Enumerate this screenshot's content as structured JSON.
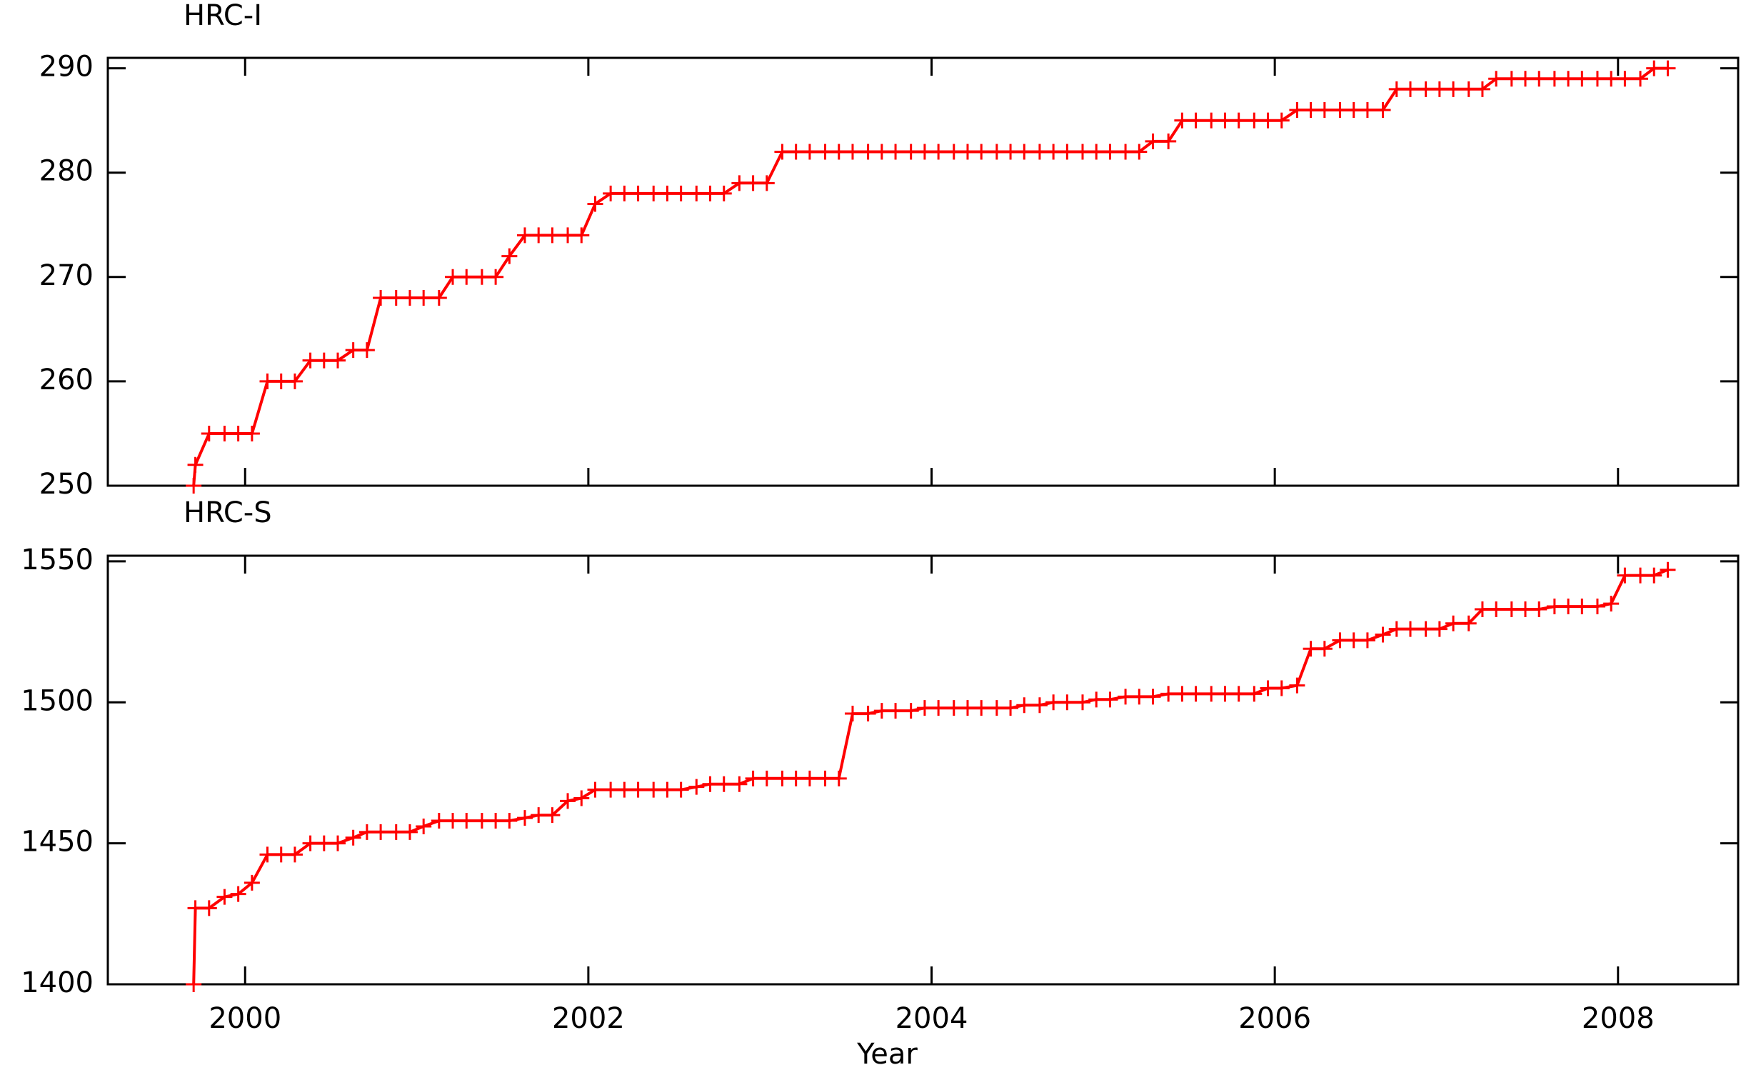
{
  "chart_data": [
    {
      "type": "line",
      "title": "HRC-I",
      "marker": "plus",
      "xticklabels": false,
      "xlim": [
        1999.2,
        2008.7
      ],
      "xticks": [
        2000,
        2002,
        2004,
        2006,
        2008
      ],
      "ylim": [
        250,
        291
      ],
      "yticks": [
        250,
        260,
        270,
        280,
        290
      ],
      "x": [
        1999.7,
        1999.71,
        1999.79,
        1999.88,
        1999.96,
        2000.04,
        2000.13,
        2000.21,
        2000.29,
        2000.38,
        2000.46,
        2000.54,
        2000.63,
        2000.71,
        2000.79,
        2000.88,
        2000.96,
        2001.04,
        2001.13,
        2001.21,
        2001.29,
        2001.38,
        2001.46,
        2001.54,
        2001.63,
        2001.71,
        2001.79,
        2001.88,
        2001.96,
        2002.04,
        2002.13,
        2002.21,
        2002.29,
        2002.38,
        2002.46,
        2002.54,
        2002.63,
        2002.71,
        2002.79,
        2002.88,
        2002.96,
        2003.04,
        2003.13,
        2003.21,
        2003.29,
        2003.38,
        2003.46,
        2003.54,
        2003.63,
        2003.71,
        2003.79,
        2003.88,
        2003.96,
        2004.04,
        2004.13,
        2004.21,
        2004.29,
        2004.38,
        2004.46,
        2004.54,
        2004.63,
        2004.71,
        2004.79,
        2004.88,
        2004.96,
        2005.04,
        2005.13,
        2005.21,
        2005.29,
        2005.38,
        2005.46,
        2005.54,
        2005.63,
        2005.71,
        2005.79,
        2005.88,
        2005.96,
        2006.04,
        2006.13,
        2006.21,
        2006.29,
        2006.38,
        2006.46,
        2006.54,
        2006.63,
        2006.71,
        2006.79,
        2006.88,
        2006.96,
        2007.04,
        2007.13,
        2007.21,
        2007.29,
        2007.38,
        2007.46,
        2007.54,
        2007.63,
        2007.71,
        2007.79,
        2007.88,
        2007.96,
        2008.04,
        2008.13,
        2008.21,
        2008.29
      ],
      "series": [
        {
          "color": "#ff0000",
          "values": [
            250,
            252,
            255,
            255,
            255,
            255,
            260,
            260,
            260,
            262,
            262,
            262,
            263,
            263,
            268,
            268,
            268,
            268,
            268,
            270,
            270,
            270,
            270,
            272,
            274,
            274,
            274,
            274,
            274,
            277,
            278,
            278,
            278,
            278,
            278,
            278,
            278,
            278,
            278,
            279,
            279,
            279,
            282,
            282,
            282,
            282,
            282,
            282,
            282,
            282,
            282,
            282,
            282,
            282,
            282,
            282,
            282,
            282,
            282,
            282,
            282,
            282,
            282,
            282,
            282,
            282,
            282,
            282,
            283,
            283,
            285,
            285,
            285,
            285,
            285,
            285,
            285,
            285,
            286,
            286,
            286,
            286,
            286,
            286,
            286,
            288,
            288,
            288,
            288,
            288,
            288,
            288,
            289,
            289,
            289,
            289,
            289,
            289,
            289,
            289,
            289,
            289,
            289,
            290,
            290
          ]
        }
      ]
    },
    {
      "type": "line",
      "title": "HRC-S",
      "xlabel": "Year",
      "marker": "plus",
      "xticklabels": true,
      "xlim": [
        1999.2,
        2008.7
      ],
      "xticks": [
        2000,
        2002,
        2004,
        2006,
        2008
      ],
      "ylim": [
        1400,
        1552
      ],
      "yticks": [
        1400,
        1450,
        1500,
        1550
      ],
      "x": [
        1999.7,
        1999.71,
        1999.79,
        1999.88,
        1999.96,
        2000.04,
        2000.13,
        2000.21,
        2000.29,
        2000.38,
        2000.46,
        2000.54,
        2000.63,
        2000.71,
        2000.79,
        2000.88,
        2000.96,
        2001.04,
        2001.13,
        2001.21,
        2001.29,
        2001.38,
        2001.46,
        2001.54,
        2001.63,
        2001.71,
        2001.79,
        2001.88,
        2001.96,
        2002.04,
        2002.13,
        2002.21,
        2002.29,
        2002.38,
        2002.46,
        2002.54,
        2002.63,
        2002.71,
        2002.79,
        2002.88,
        2002.96,
        2003.04,
        2003.13,
        2003.21,
        2003.29,
        2003.38,
        2003.46,
        2003.54,
        2003.63,
        2003.71,
        2003.79,
        2003.88,
        2003.96,
        2004.04,
        2004.13,
        2004.21,
        2004.29,
        2004.38,
        2004.46,
        2004.54,
        2004.63,
        2004.71,
        2004.79,
        2004.88,
        2004.96,
        2005.04,
        2005.13,
        2005.21,
        2005.29,
        2005.38,
        2005.46,
        2005.54,
        2005.63,
        2005.71,
        2005.79,
        2005.88,
        2005.96,
        2006.04,
        2006.13,
        2006.21,
        2006.29,
        2006.38,
        2006.46,
        2006.54,
        2006.63,
        2006.71,
        2006.79,
        2006.88,
        2006.96,
        2007.04,
        2007.13,
        2007.21,
        2007.29,
        2007.38,
        2007.46,
        2007.54,
        2007.63,
        2007.71,
        2007.79,
        2007.88,
        2007.96,
        2008.04,
        2008.13,
        2008.21,
        2008.29
      ],
      "series": [
        {
          "color": "#ff0000",
          "values": [
            1400,
            1427,
            1427,
            1431,
            1432,
            1436,
            1446,
            1446,
            1446,
            1450,
            1450,
            1450,
            1452,
            1454,
            1454,
            1454,
            1454,
            1456,
            1458,
            1458,
            1458,
            1458,
            1458,
            1458,
            1459,
            1460,
            1460,
            1465,
            1466,
            1469,
            1469,
            1469,
            1469,
            1469,
            1469,
            1469,
            1470,
            1471,
            1471,
            1471,
            1473,
            1473,
            1473,
            1473,
            1473,
            1473,
            1473,
            1496,
            1496,
            1497,
            1497,
            1497,
            1498,
            1498,
            1498,
            1498,
            1498,
            1498,
            1498,
            1499,
            1499,
            1500,
            1500,
            1500,
            1501,
            1501,
            1502,
            1502,
            1502,
            1503,
            1503,
            1503,
            1503,
            1503,
            1503,
            1503,
            1505,
            1505,
            1506,
            1519,
            1519,
            1522,
            1522,
            1522,
            1524,
            1526,
            1526,
            1526,
            1526,
            1528,
            1528,
            1533,
            1533,
            1533,
            1533,
            1533,
            1534,
            1534,
            1534,
            1534,
            1535,
            1545,
            1545,
            1545,
            1547
          ]
        }
      ]
    }
  ]
}
